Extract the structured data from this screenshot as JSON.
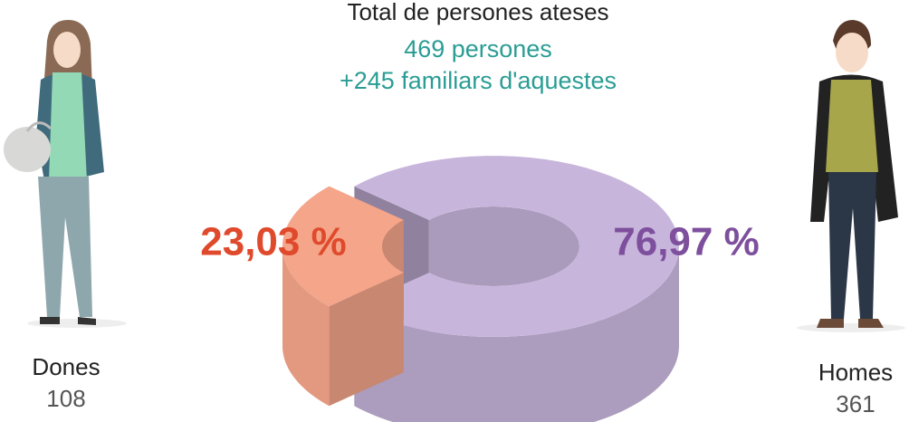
{
  "chart_data": {
    "type": "pie",
    "title": "Total de persones ateses",
    "subtitle": [
      "469 persones",
      "+245 familiars d'aquestes"
    ],
    "categories": [
      "Dones",
      "Homes"
    ],
    "values": [
      23.03,
      76.97
    ],
    "value_labels": [
      "23,03 %",
      "76,97 %"
    ],
    "counts": [
      108,
      361
    ],
    "colors": [
      "#f4a58a",
      "#c8b5dc"
    ],
    "label_colors": [
      "#e04a2c",
      "#7d4f9c"
    ]
  }
}
